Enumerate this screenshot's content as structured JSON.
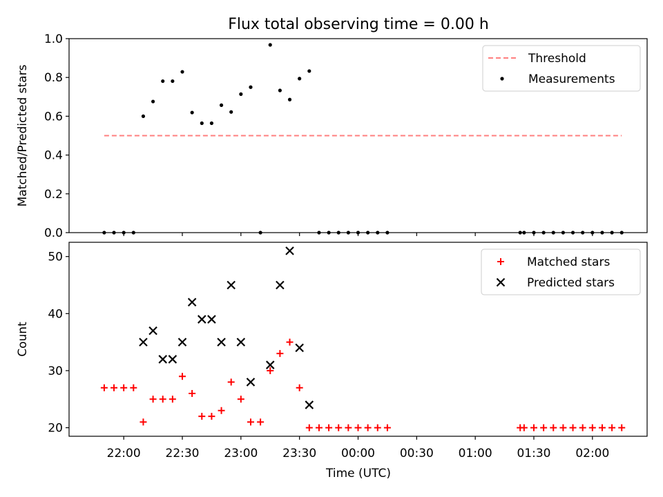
{
  "chart_data": {
    "title": "Flux total observing time = 0.00 h",
    "xlabel": "Time (UTC)",
    "x_unit": "UTC time",
    "x_ticks": [
      "22:00",
      "22:30",
      "23:00",
      "23:30",
      "00:00",
      "00:30",
      "01:00",
      "01:30",
      "02:00"
    ],
    "x_range": [
      "21:32",
      "02:28"
    ],
    "panels": [
      {
        "type": "scatter",
        "ylabel": "Matched/Predicted stars",
        "ylim": [
          0.0,
          1.0
        ],
        "yticks": [
          "0.0",
          "0.2",
          "0.4",
          "0.6",
          "0.8",
          "1.0"
        ],
        "legend": {
          "placement": "top-right"
        },
        "series": [
          {
            "name": "Threshold",
            "kind": "line",
            "style": "dashed",
            "color": "#ff7f7f",
            "points": [
              [
                "21:50",
                0.5
              ],
              [
                "02:15",
                0.5
              ]
            ]
          },
          {
            "name": "Measurements",
            "kind": "scatter",
            "marker": "dot",
            "color": "#000000",
            "points": [
              [
                "21:50",
                0.0
              ],
              [
                "21:55",
                0.0
              ],
              [
                "22:00",
                0.0
              ],
              [
                "22:05",
                0.0
              ],
              [
                "22:10",
                0.6
              ],
              [
                "22:15",
                0.676
              ],
              [
                "22:20",
                0.781
              ],
              [
                "22:25",
                0.781
              ],
              [
                "22:30",
                0.829
              ],
              [
                "22:35",
                0.619
              ],
              [
                "22:40",
                0.564
              ],
              [
                "22:45",
                0.564
              ],
              [
                "22:50",
                0.657
              ],
              [
                "22:55",
                0.622
              ],
              [
                "23:00",
                0.714
              ],
              [
                "23:05",
                0.75
              ],
              [
                "23:10",
                0.0
              ],
              [
                "23:15",
                0.968
              ],
              [
                "23:20",
                0.733
              ],
              [
                "23:25",
                0.686
              ],
              [
                "23:30",
                0.794
              ],
              [
                "23:35",
                0.833
              ],
              [
                "23:40",
                0.0
              ],
              [
                "23:45",
                0.0
              ],
              [
                "23:50",
                0.0
              ],
              [
                "23:55",
                0.0
              ],
              [
                "00:00",
                0.0
              ],
              [
                "00:05",
                0.0
              ],
              [
                "00:10",
                0.0
              ],
              [
                "00:15",
                0.0
              ],
              [
                "01:23",
                0.0
              ],
              [
                "01:25",
                0.0
              ],
              [
                "01:30",
                0.0
              ],
              [
                "01:35",
                0.0
              ],
              [
                "01:40",
                0.0
              ],
              [
                "01:45",
                0.0
              ],
              [
                "01:50",
                0.0
              ],
              [
                "01:55",
                0.0
              ],
              [
                "02:00",
                0.0
              ],
              [
                "02:05",
                0.0
              ],
              [
                "02:10",
                0.0
              ],
              [
                "02:15",
                0.0
              ]
            ]
          }
        ]
      },
      {
        "type": "scatter",
        "ylabel": "Count",
        "ylim": [
          18.5,
          52.5
        ],
        "yticks": [
          "20",
          "30",
          "40",
          "50"
        ],
        "legend": {
          "placement": "top-right"
        },
        "series": [
          {
            "name": "Matched stars",
            "kind": "scatter",
            "marker": "plus",
            "color": "#ff0000",
            "points": [
              [
                "21:50",
                27
              ],
              [
                "21:55",
                27
              ],
              [
                "22:00",
                27
              ],
              [
                "22:05",
                27
              ],
              [
                "22:10",
                21
              ],
              [
                "22:15",
                25
              ],
              [
                "22:20",
                25
              ],
              [
                "22:25",
                25
              ],
              [
                "22:30",
                29
              ],
              [
                "22:35",
                26
              ],
              [
                "22:40",
                22
              ],
              [
                "22:45",
                22
              ],
              [
                "22:50",
                23
              ],
              [
                "22:55",
                28
              ],
              [
                "23:00",
                25
              ],
              [
                "23:05",
                21
              ],
              [
                "23:10",
                21
              ],
              [
                "23:15",
                30
              ],
              [
                "23:20",
                33
              ],
              [
                "23:25",
                35
              ],
              [
                "23:30",
                27
              ],
              [
                "23:35",
                20
              ],
              [
                "23:40",
                20
              ],
              [
                "23:45",
                20
              ],
              [
                "23:50",
                20
              ],
              [
                "23:55",
                20
              ],
              [
                "00:00",
                20
              ],
              [
                "00:05",
                20
              ],
              [
                "00:10",
                20
              ],
              [
                "00:15",
                20
              ],
              [
                "01:23",
                20
              ],
              [
                "01:25",
                20
              ],
              [
                "01:30",
                20
              ],
              [
                "01:35",
                20
              ],
              [
                "01:40",
                20
              ],
              [
                "01:45",
                20
              ],
              [
                "01:50",
                20
              ],
              [
                "01:55",
                20
              ],
              [
                "02:00",
                20
              ],
              [
                "02:05",
                20
              ],
              [
                "02:10",
                20
              ],
              [
                "02:15",
                20
              ]
            ]
          },
          {
            "name": "Predicted stars",
            "kind": "scatter",
            "marker": "x",
            "color": "#000000",
            "points": [
              [
                "22:10",
                35
              ],
              [
                "22:15",
                37
              ],
              [
                "22:20",
                32
              ],
              [
                "22:25",
                32
              ],
              [
                "22:30",
                35
              ],
              [
                "22:35",
                42
              ],
              [
                "22:40",
                39
              ],
              [
                "22:45",
                39
              ],
              [
                "22:50",
                35
              ],
              [
                "22:55",
                45
              ],
              [
                "23:00",
                35
              ],
              [
                "23:05",
                28
              ],
              [
                "23:15",
                31
              ],
              [
                "23:20",
                45
              ],
              [
                "23:25",
                51
              ],
              [
                "23:30",
                34
              ],
              [
                "23:35",
                24
              ]
            ]
          }
        ]
      }
    ]
  }
}
